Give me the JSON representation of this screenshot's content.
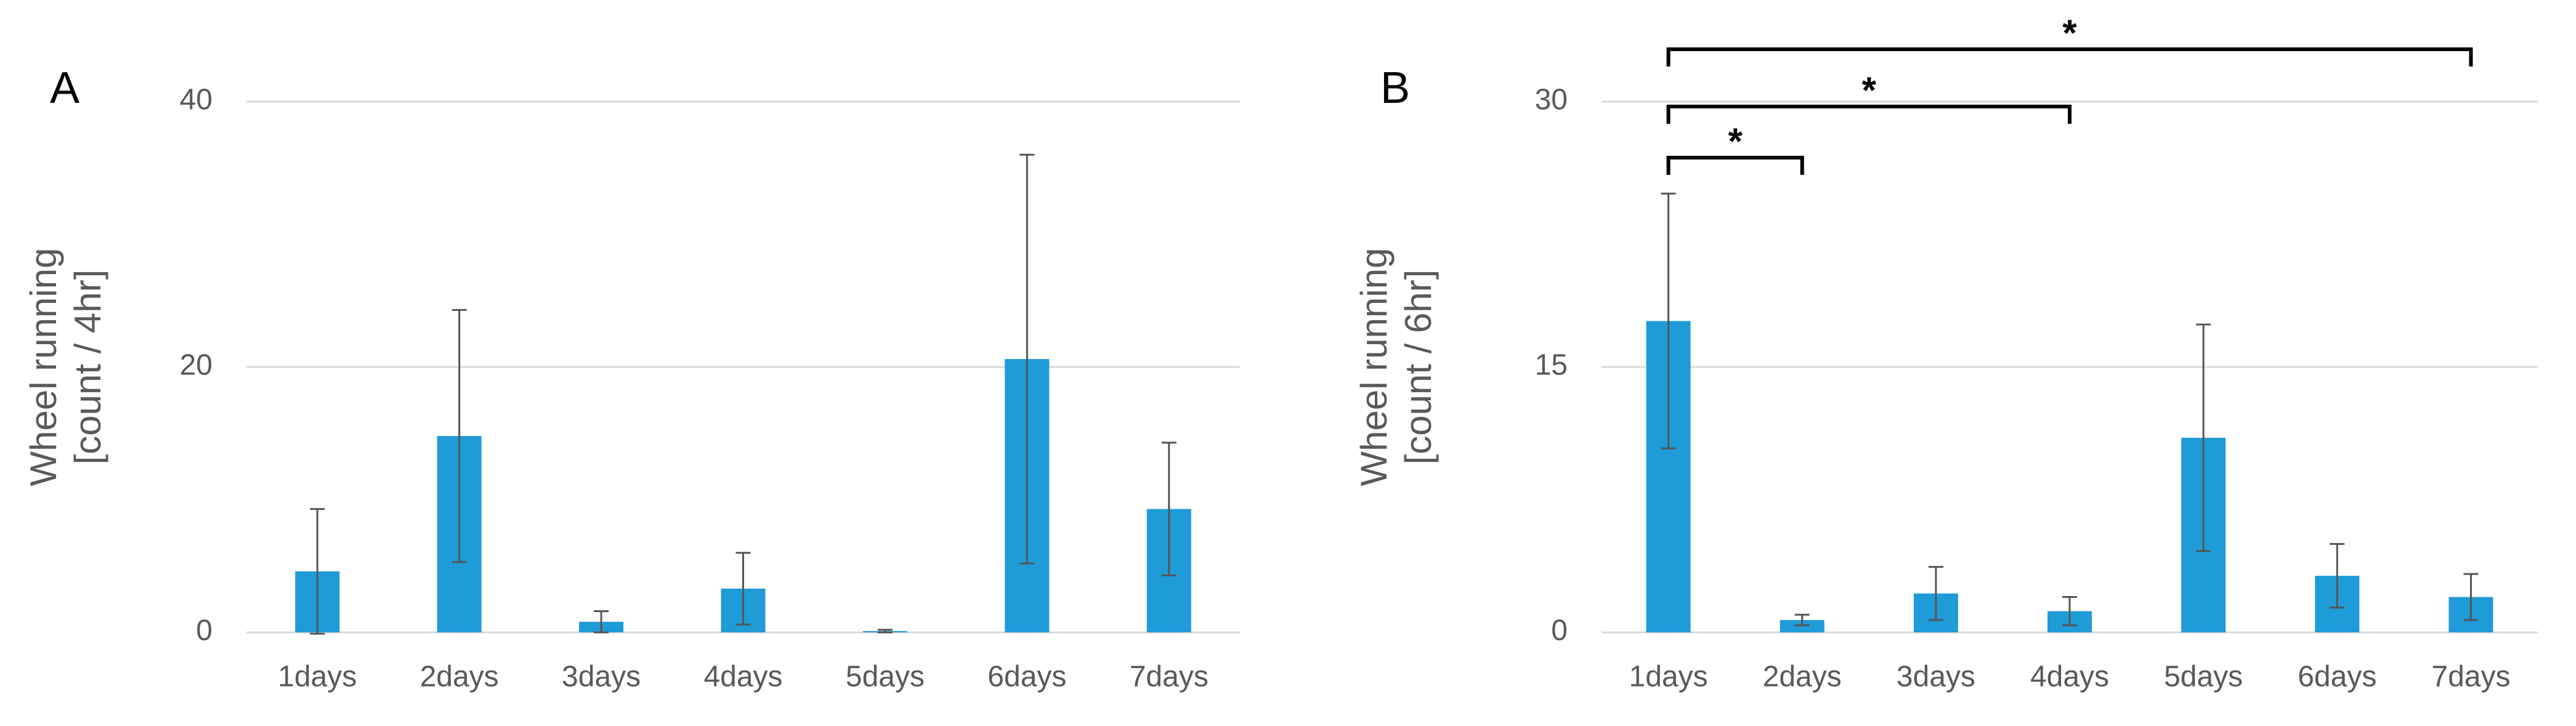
{
  "chart_data": [
    {
      "type": "bar",
      "panel_label": "A",
      "ylabel": [
        "Wheel running",
        "[count / 4hr]"
      ],
      "categories": [
        "1days",
        "2days",
        "3days",
        "4days",
        "5days",
        "6days",
        "7days"
      ],
      "values": [
        4.6,
        14.8,
        0.8,
        3.3,
        0.1,
        20.6,
        9.3
      ],
      "errors": [
        4.7,
        9.5,
        0.8,
        2.7,
        0.1,
        15.4,
        5.0
      ],
      "color": "#1f9bd7",
      "ylim": [
        0,
        40
      ],
      "yticks": [
        0,
        20,
        40
      ],
      "grid": true
    },
    {
      "type": "bar",
      "panel_label": "B",
      "ylabel": [
        "Wheel running",
        "[count / 6hr]"
      ],
      "categories": [
        "1days",
        "2days",
        "3days",
        "4days",
        "5days",
        "6days",
        "7days"
      ],
      "values": [
        17.6,
        0.7,
        2.2,
        1.2,
        11.0,
        3.2,
        2.0
      ],
      "errors": [
        7.2,
        0.3,
        1.5,
        0.8,
        6.4,
        1.8,
        1.3
      ],
      "color": "#1f9bd7",
      "ylim": [
        0,
        30
      ],
      "yticks": [
        0,
        15,
        30
      ],
      "grid": true,
      "brackets": [
        {
          "start": "1days",
          "end": "2days",
          "label": "*"
        },
        {
          "start": "1days",
          "end": "4days",
          "label": "*"
        },
        {
          "start": "1days",
          "end": "7days",
          "label": "*"
        }
      ]
    }
  ]
}
